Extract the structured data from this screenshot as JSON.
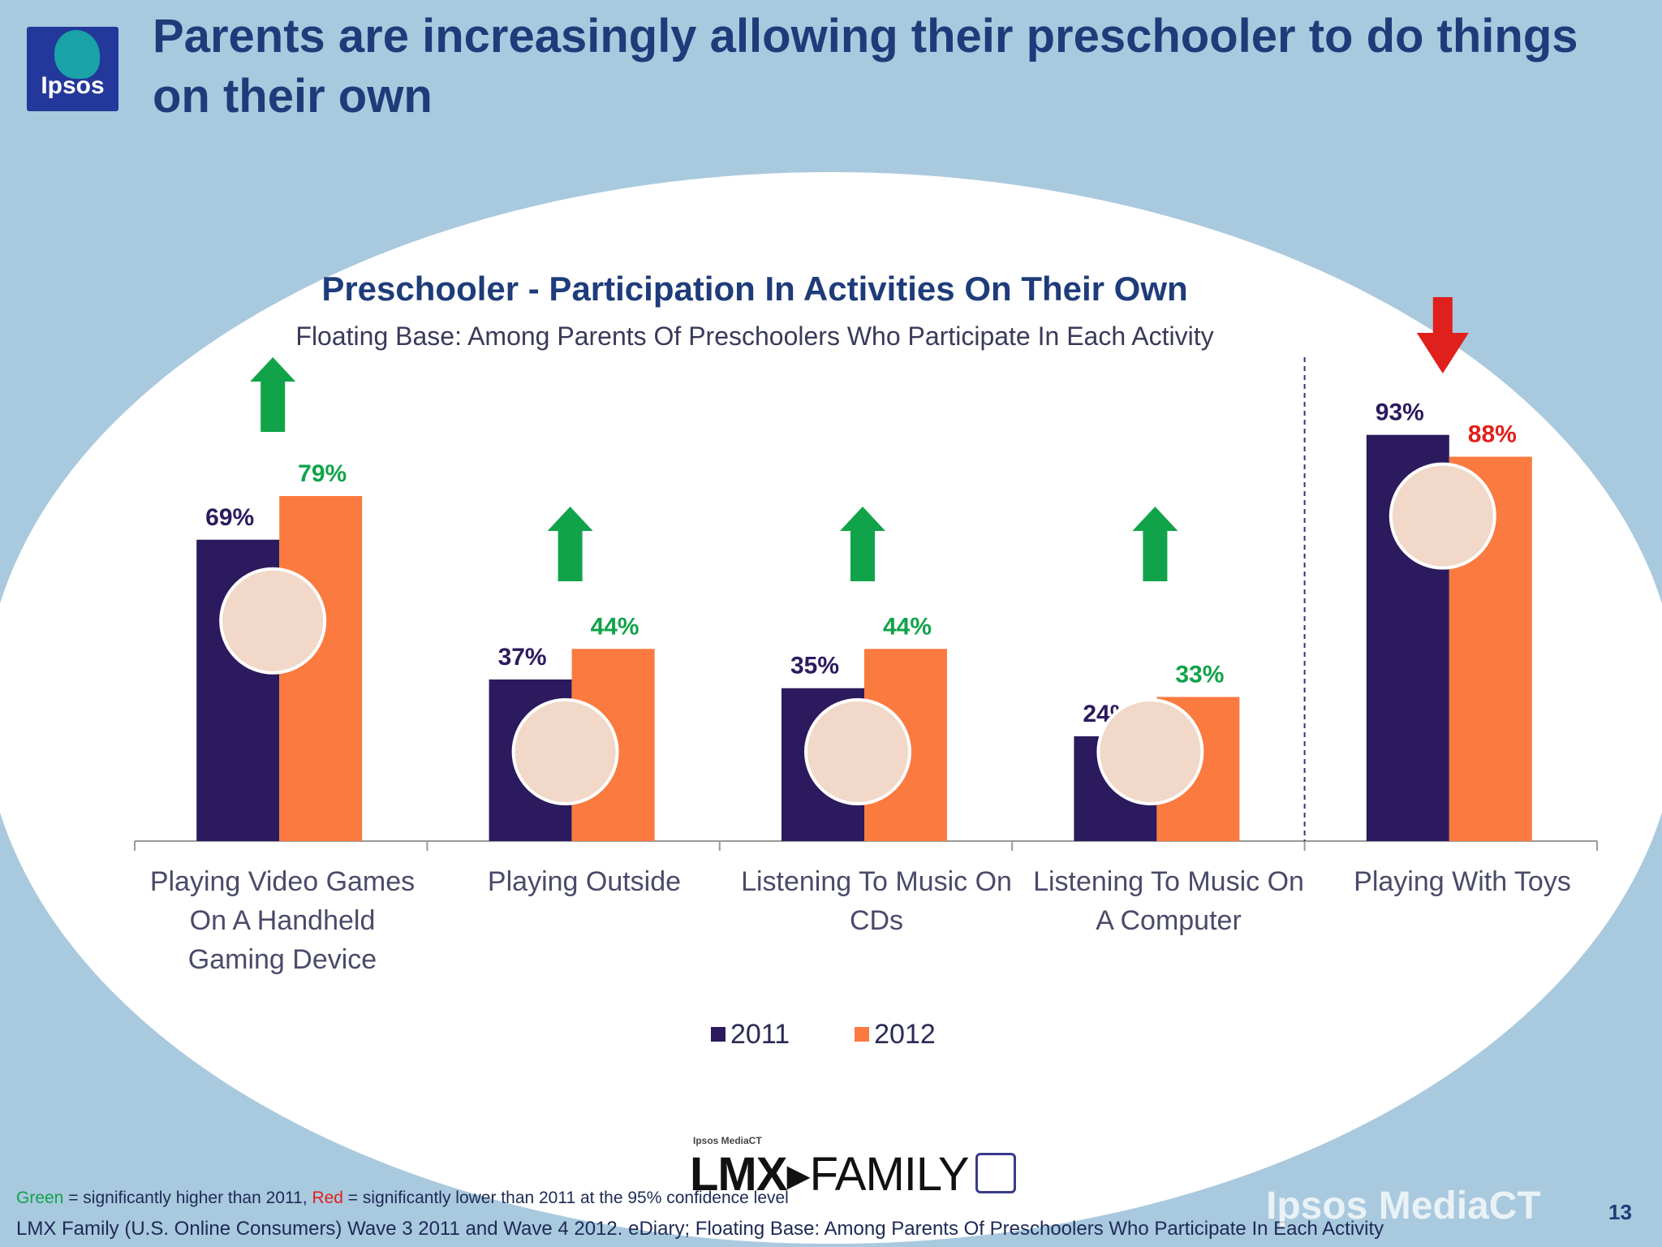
{
  "header": {
    "logo_text": "Ipsos",
    "title": "Parents are increasingly allowing their preschooler to do things on their own"
  },
  "chart_data": {
    "type": "bar",
    "title": "Preschooler - Participation In Activities On Their Own",
    "subtitle": "Floating Base: Among Parents Of Preschoolers Who Participate In Each Activity",
    "categories": [
      "Playing Video Games On A Handheld Gaming Device",
      "Playing Outside",
      "Listening To Music On CDs",
      "Listening To Music On A Computer",
      "Playing With Toys"
    ],
    "series": [
      {
        "name": "2011",
        "values": [
          69,
          37,
          35,
          24,
          93
        ],
        "labels": [
          "69%",
          "37%",
          "35%",
          "24%",
          "93%"
        ]
      },
      {
        "name": "2012",
        "values": [
          79,
          44,
          44,
          33,
          88
        ],
        "labels": [
          "79%",
          "44%",
          "44%",
          "33%",
          "88%"
        ]
      }
    ],
    "significance": [
      "up",
      "up",
      "up",
      "up",
      "down"
    ],
    "ylim": [
      0,
      100
    ],
    "legend": "bottom-center"
  },
  "colors": {
    "series_2011": "#2b1a5e",
    "series_2012": "#fb7a3f",
    "higher": "#11a34a",
    "lower": "#e0201c"
  },
  "footer": {
    "lmx_small": "Ipsos MediaCT",
    "lmx_logo": "LMX",
    "lmx_family": "FAMILY",
    "note_green": "Green",
    "note_green_rest": " = significantly higher than 2011, ",
    "note_red": "Red",
    "note_red_rest": " = significantly lower than 2011 at the 95% confidence level",
    "source": "LMX Family (U.S. Online Consumers) Wave 3 2011 and Wave 4 2012.  eDiary; Floating Base: Among Parents Of Preschoolers Who Participate In Each Activity",
    "watermark": "Ipsos MediaCT",
    "page_number": "13"
  }
}
